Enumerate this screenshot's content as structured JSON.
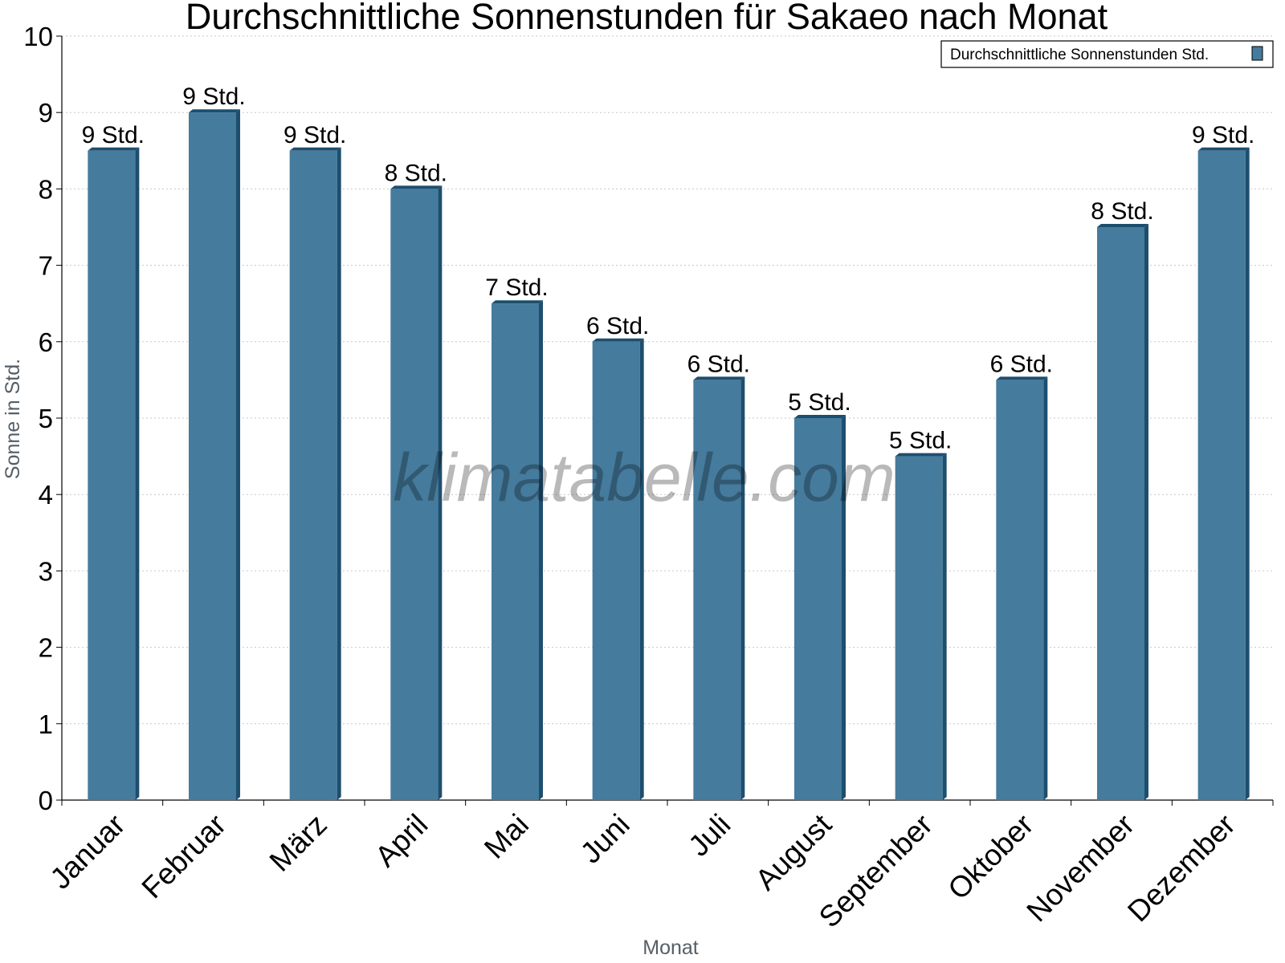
{
  "chart_data": {
    "type": "bar",
    "title": "Durchschnittliche Sonnenstunden für Sakaeo nach Monat",
    "xlabel": "Monat",
    "ylabel": "Sonne in Std.",
    "ylim": [
      0,
      10
    ],
    "yticks": [
      "0",
      "1",
      "2",
      "3",
      "4",
      "5",
      "6",
      "7",
      "8",
      "9",
      "10"
    ],
    "grid": true,
    "legend_position": "top-right",
    "categories": [
      "Januar",
      "Februar",
      "März",
      "April",
      "Mai",
      "Juni",
      "Juli",
      "August",
      "September",
      "Oktober",
      "November",
      "Dezember"
    ],
    "series": [
      {
        "name": "Durchschnittliche Sonnenstunden Std.",
        "values": [
          8.5,
          9.0,
          8.5,
          8.0,
          6.5,
          6.0,
          5.5,
          5.0,
          4.5,
          5.5,
          7.5,
          8.5
        ],
        "labels": [
          "9 Std.",
          "9 Std.",
          "9 Std.",
          "8 Std.",
          "7 Std.",
          "6 Std.",
          "6 Std.",
          "5 Std.",
          "5 Std.",
          "6 Std.",
          "8 Std.",
          "9 Std."
        ]
      }
    ],
    "colors": {
      "bar": "#457b9d",
      "bar_side": "#1d4e6e",
      "grid": "#c8c8c8"
    },
    "watermark": "klimatabelle.com"
  }
}
